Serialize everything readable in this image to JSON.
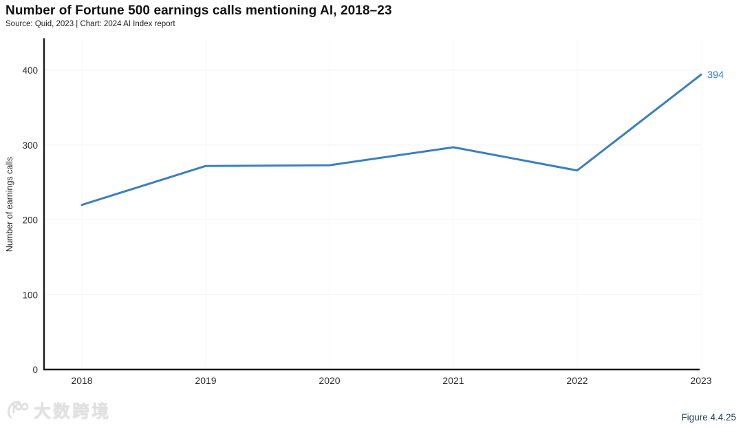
{
  "header": {
    "title": "Number of Fortune 500 earnings calls mentioning AI, 2018–23",
    "source_line": "Source: Quid, 2023 | Chart: 2024 AI Index report"
  },
  "chart_data": {
    "type": "line",
    "categories": [
      "2018",
      "2019",
      "2020",
      "2021",
      "2022",
      "2023"
    ],
    "series": [
      {
        "name": "Earnings calls mentioning AI",
        "values": [
          220,
          272,
          273,
          297,
          266,
          394
        ]
      }
    ],
    "title": "Number of Fortune 500 earnings calls mentioning AI, 2018–23",
    "xlabel": "",
    "ylabel": "Number of earnings calls",
    "ylim": [
      0,
      440
    ],
    "y_ticks": [
      0,
      100,
      200,
      300,
      400
    ],
    "grid": "horizontal and faint vertical per year",
    "legend": false,
    "end_label": "394",
    "colors": {
      "line": "#3b7ec1",
      "end_label": "#3b7ec1",
      "axis": "#1a1a1a",
      "tick_text": "#2b2b2b",
      "gridline": "#f0f0f0",
      "vertical_gridline": "#f7f7f7"
    }
  },
  "footer": {
    "figure_label": "Figure 4.4.25",
    "watermark_text": "大数跨境",
    "watermark_icon": "100-swirl-logo"
  }
}
